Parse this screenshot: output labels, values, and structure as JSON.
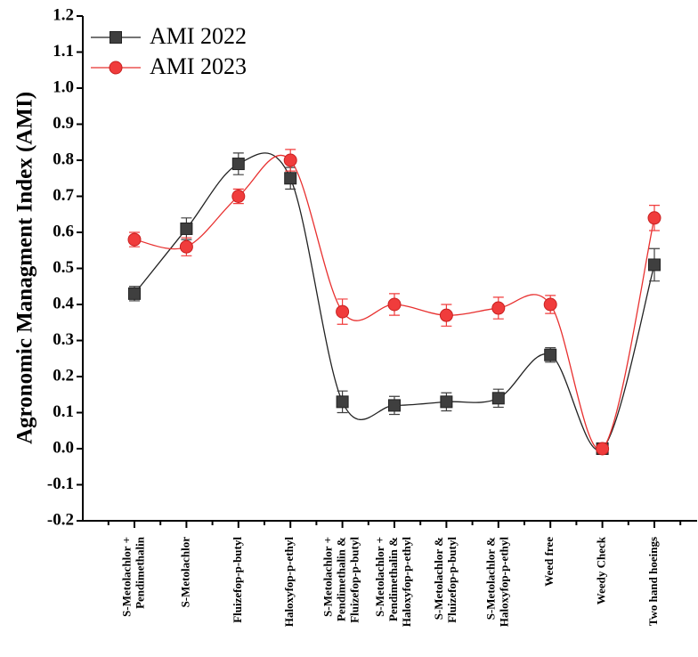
{
  "chart_data": {
    "type": "line",
    "y_label": "Agronomic Managment Index (AMI)",
    "categories": [
      [
        "S-Metolachlor +",
        "Pendimethalin"
      ],
      [
        "S-Metolachlor"
      ],
      [
        "Fluizefop-p-butyl"
      ],
      [
        "Haloxyfop-p-ethyl"
      ],
      [
        "S-Metolachlor +",
        "Pendimethalin &",
        "Fluizefop-p-butyl"
      ],
      [
        "S-Metolachlor +",
        "Pendimethalin &",
        "Haloxyfop-p-ethyl"
      ],
      [
        "S-Metolachlor &",
        "Fluizefop-p-butyl"
      ],
      [
        "S-Metolachlor &",
        "Haloxyfop-p-ethyl"
      ],
      [
        "Weed free"
      ],
      [
        "Weedy Check"
      ],
      [
        "Two hand hoeings"
      ]
    ],
    "series": [
      {
        "name": "AMI 2022",
        "color": "#3f3f3f",
        "line_color": "#222222",
        "marker": "square",
        "values": [
          0.43,
          0.61,
          0.79,
          0.75,
          0.13,
          0.12,
          0.13,
          0.14,
          0.26,
          0.0,
          0.51
        ],
        "errors": [
          0.02,
          0.03,
          0.03,
          0.03,
          0.03,
          0.025,
          0.025,
          0.025,
          0.02,
          0.01,
          0.045
        ]
      },
      {
        "name": "AMI 2023",
        "color": "#f03c3c",
        "line_color": "#e8302f",
        "marker": "circle",
        "values": [
          0.58,
          0.56,
          0.7,
          0.8,
          0.38,
          0.4,
          0.37,
          0.39,
          0.4,
          0.0,
          0.64
        ],
        "errors": [
          0.02,
          0.025,
          0.02,
          0.03,
          0.035,
          0.03,
          0.03,
          0.03,
          0.025,
          0.01,
          0.035
        ]
      }
    ],
    "ylim": [
      -0.2,
      1.2
    ],
    "yticks": [
      -0.2,
      -0.1,
      {
        "value": 0,
        "label": "0.0"
      },
      0.1,
      0.2,
      0.3,
      0.4,
      0.5,
      0.6,
      0.7,
      0.8,
      0.9,
      {
        "value": 1,
        "label": "1.0"
      },
      1.1,
      1.2
    ],
    "legend": "upper left"
  }
}
